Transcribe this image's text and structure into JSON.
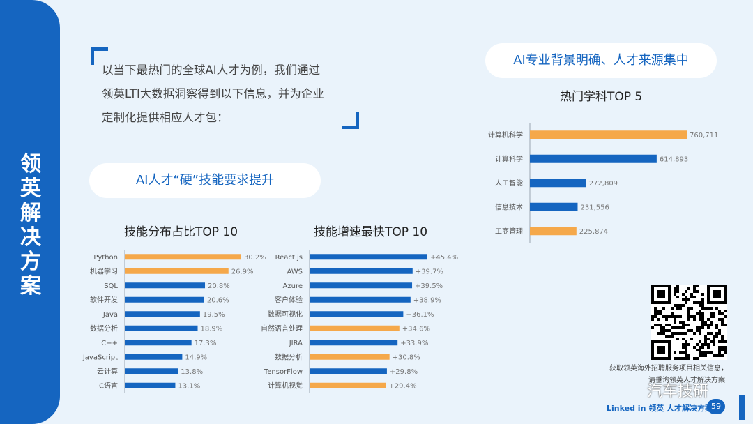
{
  "sidebar": {
    "title_chars": [
      "领",
      "英",
      "解",
      "决",
      "方",
      "案"
    ]
  },
  "intro": {
    "lines": [
      "以当下最热门的全球AI人才为例，我们通过",
      "领英LTI大数据洞察得到以下信息，并为企业",
      "定制化提供相应人才包："
    ]
  },
  "pills": {
    "left": "AI人才“硬”技能要求提升",
    "right": "AI专业背景明确、人才来源集中"
  },
  "colors": {
    "blue": "#1565c0",
    "orange": "#f5a84a",
    "background": "#eaf3fb"
  },
  "chart_data": [
    {
      "type": "bar",
      "orientation": "horizontal",
      "title": "技能分布占比TOP 10",
      "categories": [
        "Python",
        "机器学习",
        "SQL",
        "软件开发",
        "Java",
        "数据分析",
        "C++",
        "JavaScript",
        "云计算",
        "C语言"
      ],
      "values": [
        30.2,
        26.9,
        20.8,
        20.6,
        19.5,
        18.9,
        17.3,
        14.9,
        13.8,
        13.1
      ],
      "labels": [
        "30.2%",
        "26.9%",
        "20.8%",
        "20.6%",
        "19.5%",
        "18.9%",
        "17.3%",
        "14.9%",
        "13.8%",
        "13.1%"
      ],
      "highlight": [
        true,
        true,
        false,
        false,
        false,
        false,
        false,
        false,
        false,
        false
      ],
      "xlim": [
        0,
        30.2
      ]
    },
    {
      "type": "bar",
      "orientation": "horizontal",
      "title": "技能增速最快TOP 10",
      "categories": [
        "React.js",
        "AWS",
        "Azure",
        "客户体验",
        "数据可视化",
        "自然语言处理",
        "JIRA",
        "数据分析",
        "TensorFlow",
        "计算机视觉"
      ],
      "values": [
        45.4,
        39.7,
        39.5,
        38.9,
        36.1,
        34.6,
        33.9,
        30.8,
        29.8,
        29.4
      ],
      "labels": [
        "+45.4%",
        "+39.7%",
        "+39.5%",
        "+38.9%",
        "+36.1%",
        "+34.6%",
        "+33.9%",
        "+30.8%",
        "+29.8%",
        "+29.4%"
      ],
      "highlight": [
        false,
        false,
        false,
        false,
        false,
        true,
        false,
        true,
        false,
        true
      ],
      "xlim": [
        0,
        45.4
      ]
    },
    {
      "type": "bar",
      "orientation": "horizontal",
      "title": "热门学科TOP 5",
      "categories": [
        "计算机科学",
        "计算科学",
        "人工智能",
        "信息技术",
        "工商管理"
      ],
      "values": [
        760711,
        614893,
        272809,
        231556,
        225874
      ],
      "labels": [
        "760,711",
        "614,893",
        "272,809",
        "231,556",
        "225,874"
      ],
      "highlight": [
        true,
        false,
        false,
        false,
        true
      ],
      "xlim": [
        0,
        760711
      ]
    }
  ],
  "footer": {
    "qr_caption_1": "获取领英海外招聘服务项目相关信息，",
    "qr_caption_2": "请垂询领英人才解决方案",
    "brand": "Linked in 领英  人才解决方案",
    "page_number": "59",
    "watermark": "汽车技研"
  }
}
